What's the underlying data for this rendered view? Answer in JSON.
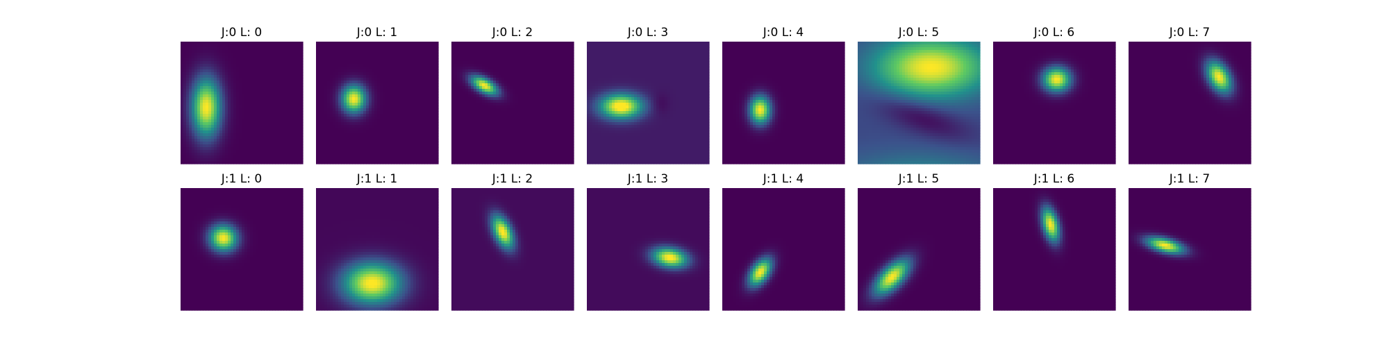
{
  "chart_data": {
    "type": "heatmap",
    "colormap": "viridis",
    "colorscale": [
      "#440154",
      "#3b528b",
      "#21918c",
      "#5ec962",
      "#fde725"
    ],
    "layout": {
      "rows": 2,
      "cols": 8
    },
    "panels": [
      {
        "title": "J:0 L: 0",
        "background": 0.0,
        "blobs": [
          {
            "cx": 0.21,
            "cy": 0.54,
            "sx": 0.085,
            "sy": 0.17,
            "angle": 0,
            "amp": 1.0
          }
        ]
      },
      {
        "title": "J:0 L: 1",
        "background": 0.0,
        "blobs": [
          {
            "cx": 0.31,
            "cy": 0.47,
            "sx": 0.07,
            "sy": 0.08,
            "angle": 0,
            "amp": 1.0
          }
        ]
      },
      {
        "title": "J:0 L: 2",
        "background": 0.0,
        "blobs": [
          {
            "cx": 0.27,
            "cy": 0.36,
            "sx": 0.085,
            "sy": 0.04,
            "angle": 30,
            "amp": 1.0
          }
        ]
      },
      {
        "title": "J:0 L: 3",
        "background": 0.08,
        "blobs": [
          {
            "cx": 0.28,
            "cy": 0.53,
            "sx": 0.12,
            "sy": 0.07,
            "angle": 0,
            "amp": 1.0
          },
          {
            "cx": 0.6,
            "cy": 0.51,
            "sx": 0.05,
            "sy": 0.06,
            "angle": 0,
            "amp": -0.06
          }
        ]
      },
      {
        "title": "J:0 L: 4",
        "background": 0.0,
        "blobs": [
          {
            "cx": 0.31,
            "cy": 0.56,
            "sx": 0.06,
            "sy": 0.08,
            "angle": 0,
            "amp": 1.0
          }
        ]
      },
      {
        "title": "J:0 L: 5",
        "background": 0.22,
        "blobs": [
          {
            "cx": 0.6,
            "cy": 0.21,
            "sx": 0.32,
            "sy": 0.17,
            "angle": 0,
            "amp": 0.78
          },
          {
            "cx": 0.52,
            "cy": 0.62,
            "sx": 0.28,
            "sy": 0.09,
            "angle": 20,
            "amp": -0.2
          },
          {
            "cx": 0.5,
            "cy": 1.12,
            "sx": 0.45,
            "sy": 0.15,
            "angle": 0,
            "amp": 0.25
          }
        ]
      },
      {
        "title": "J:0 L: 6",
        "background": 0.0,
        "blobs": [
          {
            "cx": 0.52,
            "cy": 0.31,
            "sx": 0.08,
            "sy": 0.07,
            "angle": 0,
            "amp": 1.0
          }
        ]
      },
      {
        "title": "J:0 L: 7",
        "background": 0.0,
        "blobs": [
          {
            "cx": 0.74,
            "cy": 0.29,
            "sx": 0.06,
            "sy": 0.1,
            "angle": -30,
            "amp": 1.0
          }
        ]
      },
      {
        "title": "J:1 L: 0",
        "background": 0.0,
        "blobs": [
          {
            "cx": 0.35,
            "cy": 0.41,
            "sx": 0.08,
            "sy": 0.075,
            "angle": 15,
            "amp": 1.0
          }
        ]
      },
      {
        "title": "J:1 L: 1",
        "background": 0.02,
        "blobs": [
          {
            "cx": 0.46,
            "cy": 0.78,
            "sx": 0.17,
            "sy": 0.12,
            "angle": 0,
            "amp": 1.0
          }
        ]
      },
      {
        "title": "J:1 L: 2",
        "background": 0.03,
        "blobs": [
          {
            "cx": 0.42,
            "cy": 0.36,
            "sx": 0.05,
            "sy": 0.1,
            "angle": -25,
            "amp": 1.0
          }
        ]
      },
      {
        "title": "J:1 L: 3",
        "background": 0.03,
        "blobs": [
          {
            "cx": 0.68,
            "cy": 0.57,
            "sx": 0.1,
            "sy": 0.055,
            "angle": 10,
            "amp": 1.0
          }
        ]
      },
      {
        "title": "J:1 L: 4",
        "background": 0.0,
        "blobs": [
          {
            "cx": 0.31,
            "cy": 0.69,
            "sx": 0.05,
            "sy": 0.09,
            "angle": 35,
            "amp": 1.0
          }
        ]
      },
      {
        "title": "J:1 L: 5",
        "background": 0.0,
        "blobs": [
          {
            "cx": 0.28,
            "cy": 0.73,
            "sx": 0.06,
            "sy": 0.13,
            "angle": 45,
            "amp": 1.0
          }
        ]
      },
      {
        "title": "J:1 L: 6",
        "background": 0.0,
        "blobs": [
          {
            "cx": 0.47,
            "cy": 0.3,
            "sx": 0.045,
            "sy": 0.1,
            "angle": -15,
            "amp": 1.0
          }
        ]
      },
      {
        "title": "J:1 L: 7",
        "background": 0.0,
        "blobs": [
          {
            "cx": 0.3,
            "cy": 0.47,
            "sx": 0.11,
            "sy": 0.04,
            "angle": 15,
            "amp": 1.0
          }
        ]
      }
    ]
  }
}
